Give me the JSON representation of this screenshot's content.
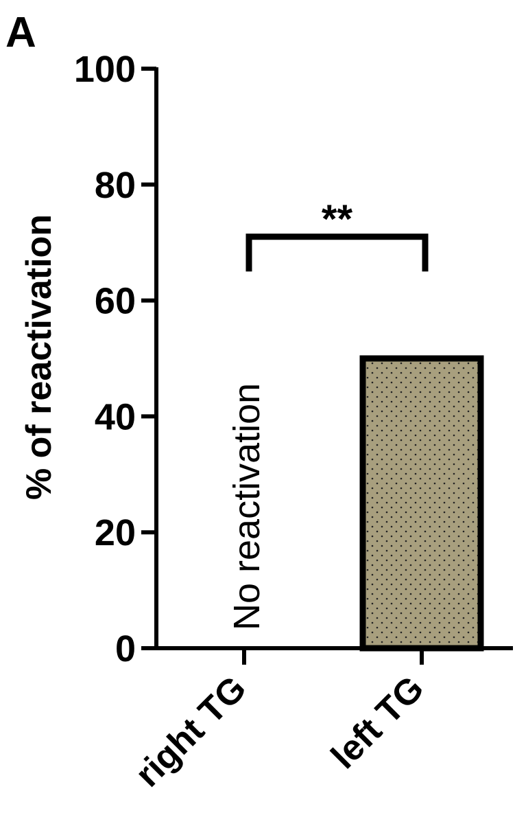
{
  "panel_label": "A",
  "chart_data": {
    "type": "bar",
    "categories": [
      "right TG",
      "left TG"
    ],
    "values": [
      0,
      50
    ],
    "ylabel": "% of reactivation",
    "ylim": [
      0,
      100
    ],
    "yticks": [
      0,
      20,
      40,
      60,
      80,
      100
    ],
    "grid": false,
    "bar_fill": "#a89f7e",
    "bar_stroke": "#000000",
    "annotations": {
      "bar_note": "No reactivation",
      "significance": "**"
    }
  }
}
